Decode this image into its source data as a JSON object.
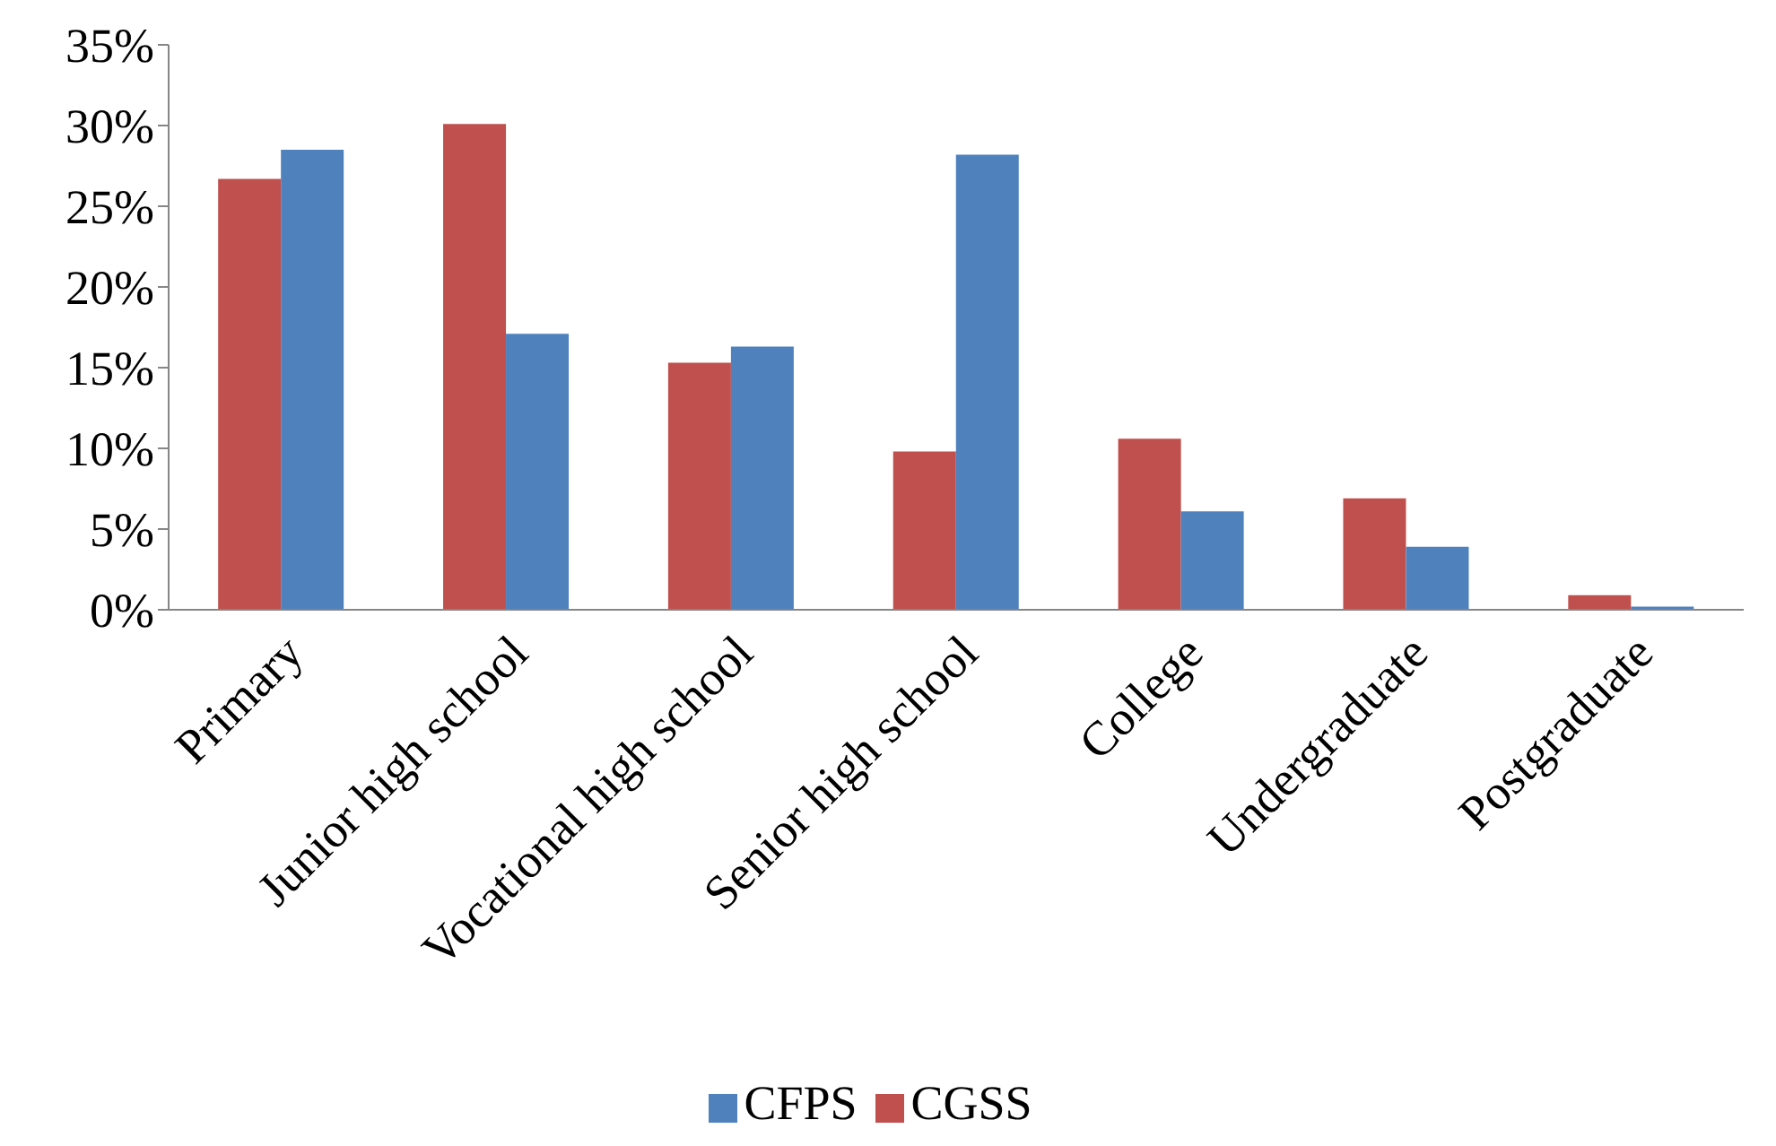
{
  "chart_data": {
    "type": "bar",
    "categories": [
      "Primary",
      "Junior high school",
      "Vocational high school",
      "Senior high school",
      "College",
      "Undergraduate",
      "Postgraduate"
    ],
    "series": [
      {
        "name": "CGSS",
        "color": "#c0504d",
        "values": [
          26.7,
          30.1,
          15.3,
          9.8,
          10.6,
          6.9,
          0.9
        ]
      },
      {
        "name": "CFPS",
        "color": "#4f81bd",
        "values": [
          28.5,
          17.1,
          16.3,
          28.2,
          6.1,
          3.9,
          0.2
        ]
      }
    ],
    "ylim": [
      0,
      35
    ],
    "yticks": [
      {
        "value": 0,
        "label": "0%"
      },
      {
        "value": 5,
        "label": "5%"
      },
      {
        "value": 10,
        "label": "10%"
      },
      {
        "value": 15,
        "label": "15%"
      },
      {
        "value": 20,
        "label": "20%"
      },
      {
        "value": 25,
        "label": "25%"
      },
      {
        "value": 30,
        "label": "30%"
      },
      {
        "value": 35,
        "label": "35%"
      }
    ],
    "grid": false,
    "legend": "bottom"
  }
}
